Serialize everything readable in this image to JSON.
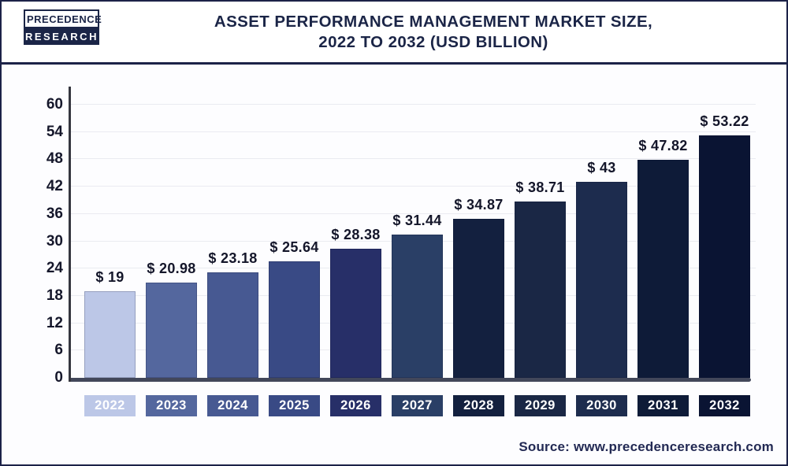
{
  "header": {
    "logo_line1": "PRECEDENCE",
    "logo_line2": "RESEARCH",
    "title_line1": "ASSET PERFORMANCE MANAGEMENT MARKET SIZE,",
    "title_line2": "2022 TO 2032 (USD BILLION)"
  },
  "chart_data": {
    "type": "bar",
    "title": "Asset Performance Management Market Size, 2022 to 2032 (USD Billion)",
    "categories": [
      "2022",
      "2023",
      "2024",
      "2025",
      "2026",
      "2027",
      "2028",
      "2029",
      "2030",
      "2031",
      "2032"
    ],
    "values": [
      19,
      20.98,
      23.18,
      25.64,
      28.38,
      31.44,
      34.87,
      38.71,
      43,
      47.82,
      53.22
    ],
    "value_labels": [
      "$ 19",
      "$ 20.98",
      "$ 23.18",
      "$ 25.64",
      "$ 28.38",
      "$ 31.44",
      "$ 34.87",
      "$ 38.71",
      "$ 43",
      "$ 47.82",
      "$ 53.22"
    ],
    "bar_colors": [
      "#bcc7e7",
      "#54679e",
      "#475992",
      "#394a85",
      "#272f68",
      "#2a3f66",
      "#13203f",
      "#1a2745",
      "#1d2c4e",
      "#0e1b38",
      "#0a1433"
    ],
    "xlabel": "",
    "ylabel": "",
    "ylim": [
      0,
      60
    ],
    "yticks": [
      0,
      6,
      12,
      18,
      24,
      30,
      36,
      42,
      48,
      54,
      60
    ],
    "grid": true,
    "legend_position": "none"
  },
  "footer": {
    "source": "Source: www.precedenceresearch.com"
  },
  "colors": {
    "accent_navy": "#1b2547",
    "axis_line": "#42475a",
    "grid_line": "#eaebf1",
    "tick_text": "#15172b",
    "background": "#ffffff"
  }
}
